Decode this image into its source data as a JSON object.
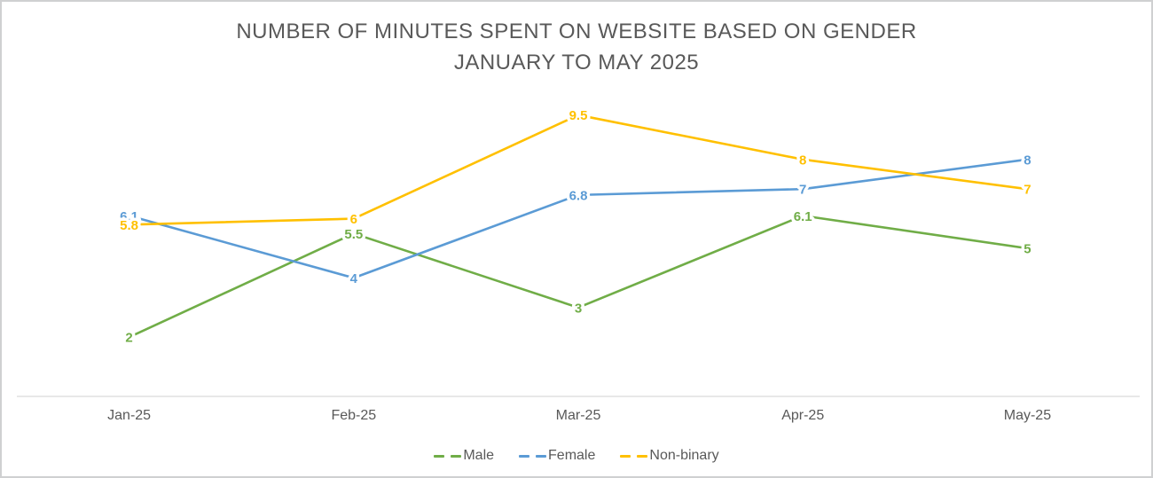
{
  "chart_data": {
    "type": "line",
    "title": "NUMBER OF MINUTES SPENT ON WEBSITE BASED ON GENDER",
    "subtitle": "JANUARY TO MAY 2025",
    "categories": [
      "Jan-25",
      "Feb-25",
      "Mar-25",
      "Apr-25",
      "May-25"
    ],
    "series": [
      {
        "name": "Male",
        "color": "#70AD47",
        "values": [
          2,
          5.5,
          3,
          6.1,
          5
        ]
      },
      {
        "name": "Female",
        "color": "#5B9BD5",
        "values": [
          6.1,
          4,
          6.8,
          7,
          8
        ]
      },
      {
        "name": "Non-binary",
        "color": "#FFC000",
        "values": [
          5.8,
          6,
          9.5,
          8,
          7
        ]
      }
    ],
    "xlabel": "",
    "ylabel": "",
    "ylim": [
      0,
      10
    ],
    "grid": false,
    "y_axis_labels_visible": false,
    "legend_position": "bottom",
    "data_labels": "centered on data points",
    "colors": {
      "title": "#595959",
      "axis_label": "#595959",
      "axis_line": "#E0E0E0",
      "legend_text": "#595959"
    }
  }
}
